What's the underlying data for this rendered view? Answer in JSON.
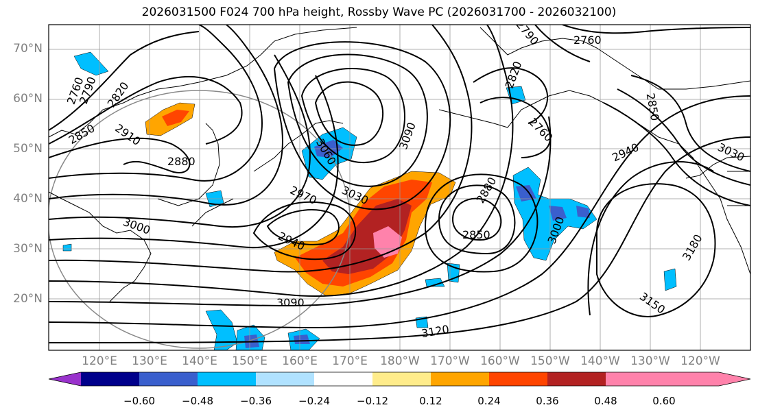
{
  "title": "2026031500 F024 700 hPa height, Rossby Wave PC (2026031700 - 2026032100)",
  "lat_labels": [
    "70°N",
    "60°N",
    "50°N",
    "40°N",
    "30°N",
    "20°N"
  ],
  "lon_labels": [
    "120°E",
    "130°E",
    "140°E",
    "150°E",
    "160°E",
    "170°E",
    "180°W",
    "170°W",
    "160°W",
    "150°W",
    "140°W",
    "130°W",
    "120°W"
  ],
  "contour_labels": [
    "2760",
    "2790",
    "2820",
    "2850",
    "2910",
    "2880",
    "3060",
    "3090",
    "2970",
    "3030",
    "2940",
    "3000",
    "3090",
    "3120",
    "2880",
    "2850",
    "3000",
    "2760",
    "2790",
    "2820",
    "2760",
    "2850",
    "2940",
    "3030",
    "3180",
    "3150"
  ],
  "colorbar": {
    "ticks": [
      "−0.60",
      "−0.48",
      "−0.36",
      "−0.24",
      "−0.12",
      "0.12",
      "0.24",
      "0.36",
      "0.48",
      "0.60"
    ],
    "colors": [
      "#9932CC",
      "#00008B",
      "#3A5FCD",
      "#00BFFF",
      "#B0E2FF",
      "#FFFFFF",
      "#FFEC8B",
      "#FFA500",
      "#FF4500",
      "#B22222",
      "#FF82AB"
    ]
  }
}
